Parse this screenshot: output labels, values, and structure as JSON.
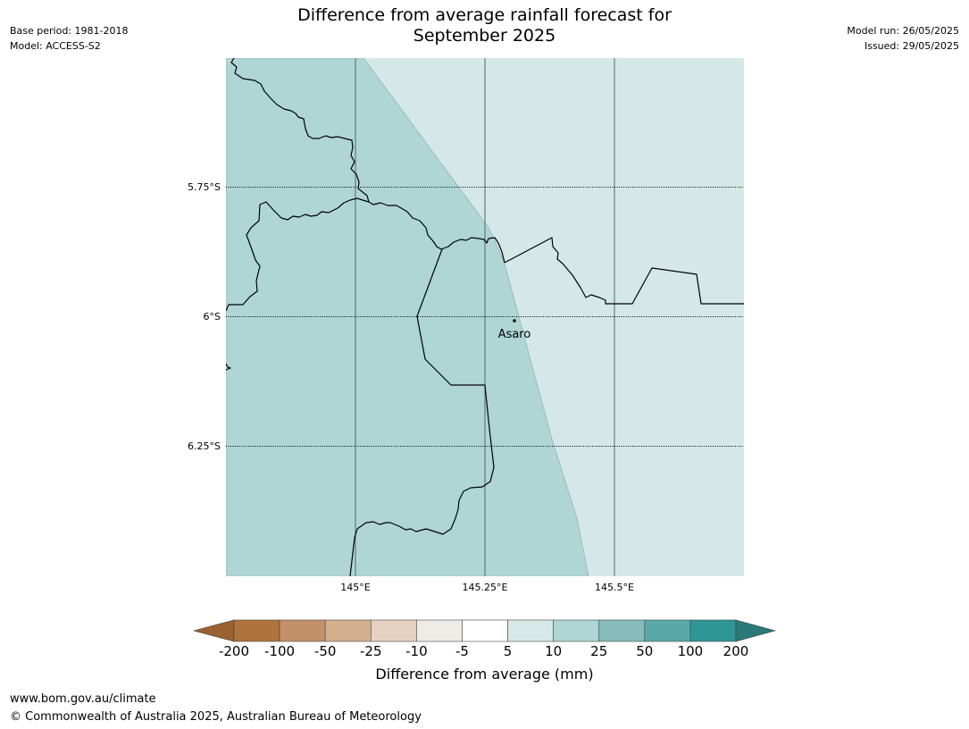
{
  "header": {
    "title_line1": "Difference from average rainfall forecast for",
    "title_line2": "September 2025",
    "base_period": "Base period: 1981-2018",
    "model": "Model: ACCESS-S2",
    "model_run": "Model run: 26/05/2025",
    "issued": "Issued: 29/05/2025"
  },
  "map": {
    "lat_labels": [
      "5.75°S",
      "6°S",
      "6.25°S"
    ],
    "lon_labels": [
      "145°E",
      "145.25°E",
      "145.5°E"
    ],
    "place": {
      "name": "Asaro"
    },
    "colors": {
      "category_10_to_25": "#afd5d5",
      "category_5_to_10": "#d4e8e7",
      "border": "#000000",
      "gridline": "#556666"
    }
  },
  "colorbar": {
    "label": "Difference from average (mm)",
    "ticks": [
      "-200",
      "-100",
      "-50",
      "-25",
      "-10",
      "-5",
      "5",
      "10",
      "25",
      "50",
      "100",
      "200"
    ],
    "colors": [
      "#9b6130",
      "#af743b",
      "#c29169",
      "#d4b08f",
      "#e6d1c0",
      "#efebe7",
      "#ffffff",
      "#d6e9e8",
      "#afd5d5",
      "#86bcbb",
      "#59a8a8",
      "#2e9796",
      "#2a7877"
    ]
  },
  "footer": {
    "url": "www.bom.gov.au/climate",
    "copyright": "© Commonwealth of Australia 2025, Australian Bureau of Meteorology"
  }
}
